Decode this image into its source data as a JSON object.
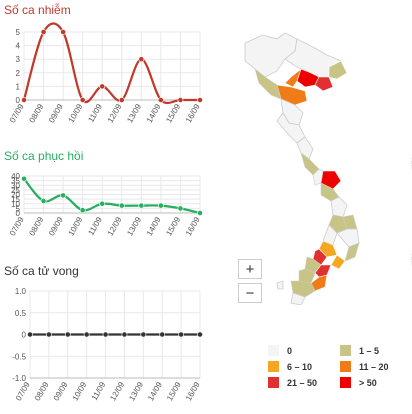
{
  "charts": {
    "cases": {
      "title": "Số ca nhiễm",
      "title_color": "#c0392b"
    },
    "recovered": {
      "title": "Số ca phục hồi",
      "title_color": "#27ae60"
    },
    "deaths": {
      "title": "Số ca tử vong",
      "title_color": "#333333"
    }
  },
  "chart_data": [
    {
      "type": "line",
      "title": "Số ca nhiễm",
      "categories": [
        "07/09",
        "08/09",
        "09/09",
        "10/09",
        "11/09",
        "12/09",
        "13/09",
        "14/09",
        "15/09",
        "16/09"
      ],
      "series": [
        {
          "values": [
            0,
            5,
            5,
            0,
            1,
            0,
            3,
            0,
            0,
            0
          ],
          "color": "#c0392b"
        }
      ],
      "y_ticks": [
        0,
        1,
        2,
        3,
        4,
        5
      ],
      "ylim": [
        0,
        5
      ],
      "grid": true
    },
    {
      "type": "line",
      "title": "Số ca phục hồi",
      "categories": [
        "07/09",
        "08/09",
        "09/09",
        "10/09",
        "11/09",
        "12/09",
        "13/09",
        "14/09",
        "15/09",
        "16/09"
      ],
      "series": [
        {
          "values": [
            37,
            13,
            19,
            3,
            10,
            8,
            8,
            8,
            5,
            0
          ],
          "color": "#27ae60"
        }
      ],
      "y_ticks": [
        0,
        5,
        10,
        15,
        20,
        25,
        30,
        35,
        40
      ],
      "ylim": [
        0,
        40
      ],
      "grid": true
    },
    {
      "type": "line",
      "title": "Số ca tử vong",
      "categories": [
        "07/09",
        "08/09",
        "09/09",
        "10/09",
        "11/09",
        "12/09",
        "13/09",
        "14/09",
        "15/09",
        "16/09"
      ],
      "series": [
        {
          "values": [
            0,
            0,
            0,
            0,
            0,
            0,
            0,
            0,
            0,
            0
          ],
          "color": "#333333"
        }
      ],
      "y_ticks": [
        "-1.0",
        "-0.5",
        "0",
        "0.5",
        "1.0"
      ],
      "ylim": [
        -1,
        1
      ],
      "grid": true
    }
  ],
  "map": {
    "zoom_in_label": "+",
    "zoom_out_label": "−"
  },
  "legend": [
    {
      "label": "0",
      "color": "#f4f4f4"
    },
    {
      "label": "1 – 5",
      "color": "#c8c486"
    },
    {
      "label": "6 – 10",
      "color": "#f5a623"
    },
    {
      "label": "11 – 20",
      "color": "#f07c18"
    },
    {
      "label": "21 – 50",
      "color": "#e03030"
    },
    {
      "label": "> 50",
      "color": "#ee0000"
    }
  ]
}
